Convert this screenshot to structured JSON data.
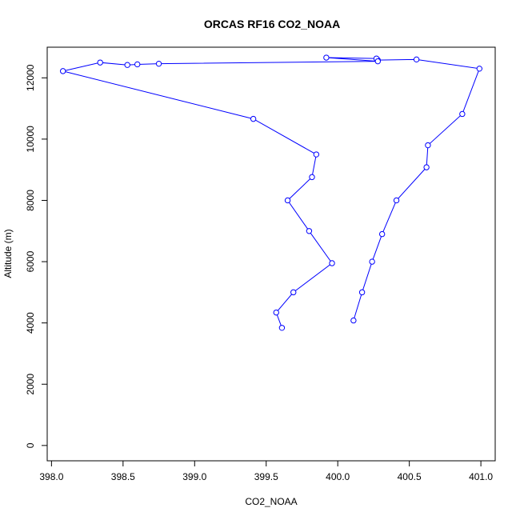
{
  "chart_data": {
    "type": "line",
    "title": "ORCAS RF16 CO2_NOAA",
    "xlabel": "CO2_NOAA",
    "ylabel": "Altitude (m)",
    "xlim": [
      397.97,
      401.1
    ],
    "ylim": [
      -500,
      13000
    ],
    "xticks": [
      398.0,
      398.5,
      399.0,
      399.5,
      400.0,
      400.5,
      401.0
    ],
    "xtick_labels": [
      "398.0",
      "398.5",
      "399.0",
      "399.5",
      "400.0",
      "400.5",
      "401.0"
    ],
    "yticks": [
      0,
      2000,
      4000,
      6000,
      8000,
      10000,
      12000
    ],
    "ytick_labels": [
      "0",
      "2000",
      "4000",
      "6000",
      "8000",
      "10000",
      "12000"
    ],
    "grid": false,
    "series": [
      {
        "color": "#0000ff",
        "x": [
          400.11,
          400.17,
          400.24,
          400.31,
          400.41,
          400.62,
          400.63,
          400.87,
          400.99,
          400.55,
          400.28,
          400.27,
          399.92,
          400.28,
          398.75,
          398.6,
          398.53,
          398.34,
          398.08,
          399.41,
          399.85,
          399.82,
          399.65,
          399.8,
          399.96,
          399.69,
          399.57,
          399.61
        ],
        "y": [
          4080,
          5000,
          6000,
          6900,
          8000,
          9080,
          9800,
          10820,
          12300,
          12600,
          12580,
          12630,
          12660,
          12540,
          12460,
          12440,
          12420,
          12500,
          12220,
          10660,
          9500,
          8760,
          8000,
          7000,
          5950,
          5000,
          4340,
          3840
        ]
      }
    ]
  }
}
